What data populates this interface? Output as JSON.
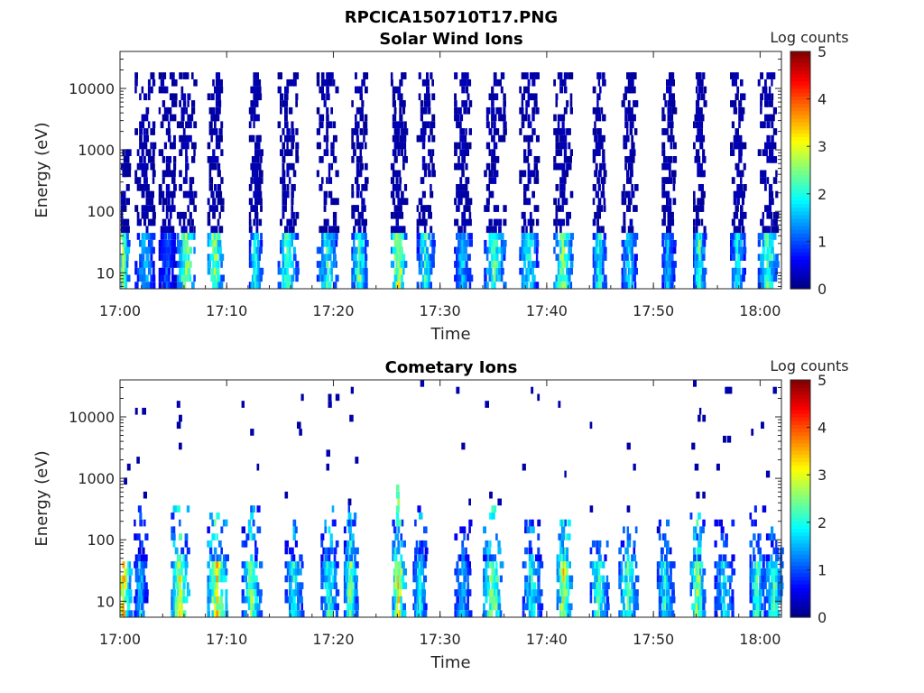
{
  "figure": {
    "title": "RPCICA150710T17.PNG"
  },
  "colormap": "jet",
  "chart_data": [
    {
      "type": "heatmap",
      "title": "Solar Wind Ions",
      "xlabel": "Time",
      "ylabel": "Energy (eV)",
      "x_range": [
        "17:00",
        "18:02"
      ],
      "x_ticks": [
        "17:00",
        "17:10",
        "17:20",
        "17:30",
        "17:40",
        "17:50",
        "18:00"
      ],
      "y_scale": "log",
      "y_range": [
        5.5,
        40000
      ],
      "y_ticks": [
        10,
        100,
        1000,
        10000
      ],
      "y_tick_labels": [
        "10",
        "100",
        "1000",
        "10000"
      ],
      "colorbar": {
        "label": "Log counts",
        "range": [
          0,
          5
        ],
        "ticks": [
          "0",
          "1",
          "2",
          "3",
          "4",
          "5"
        ]
      },
      "bursts": [
        {
          "t": 0.2,
          "peak": 2.9,
          "top_e": 1000
        },
        {
          "t": 2.2,
          "peak": 1.7,
          "top_e": 20000
        },
        {
          "t": 4.3,
          "peak": 1.2,
          "top_e": 20000
        },
        {
          "t": 6.1,
          "peak": 3.0,
          "top_e": 20000
        },
        {
          "t": 8.8,
          "peak": 3.0,
          "top_e": 20000
        },
        {
          "t": 12.6,
          "peak": 2.2,
          "top_e": 20000
        },
        {
          "t": 15.6,
          "peak": 2.4,
          "top_e": 20000
        },
        {
          "t": 19.3,
          "peak": 2.2,
          "top_e": 20000
        },
        {
          "t": 22.3,
          "peak": 2.5,
          "top_e": 20000
        },
        {
          "t": 26.0,
          "peak": 3.3,
          "top_e": 20000
        },
        {
          "t": 28.5,
          "peak": 2.2,
          "top_e": 20000
        },
        {
          "t": 32.0,
          "peak": 1.8,
          "top_e": 20000
        },
        {
          "t": 35.0,
          "peak": 2.5,
          "top_e": 20000
        },
        {
          "t": 38.2,
          "peak": 2.2,
          "top_e": 20000
        },
        {
          "t": 41.4,
          "peak": 2.8,
          "top_e": 20000
        },
        {
          "t": 44.8,
          "peak": 2.3,
          "top_e": 20000
        },
        {
          "t": 47.6,
          "peak": 2.0,
          "top_e": 20000
        },
        {
          "t": 51.3,
          "peak": 1.8,
          "top_e": 20000
        },
        {
          "t": 54.2,
          "peak": 2.5,
          "top_e": 20000
        },
        {
          "t": 57.8,
          "peak": 2.0,
          "top_e": 20000
        },
        {
          "t": 60.6,
          "peak": 2.5,
          "top_e": 20000
        }
      ]
    },
    {
      "type": "heatmap",
      "title": "Cometary Ions",
      "xlabel": "Time",
      "ylabel": "Energy (eV)",
      "x_range": [
        "17:00",
        "18:02"
      ],
      "x_ticks": [
        "17:00",
        "17:10",
        "17:20",
        "17:30",
        "17:40",
        "17:50",
        "18:00"
      ],
      "y_scale": "log",
      "y_range": [
        5.5,
        40000
      ],
      "y_ticks": [
        10,
        100,
        1000,
        10000
      ],
      "y_tick_labels": [
        "10",
        "100",
        "1000",
        "10000"
      ],
      "colorbar": {
        "label": "Log counts",
        "range": [
          0,
          5
        ],
        "ticks": [
          "0",
          "1",
          "2",
          "3",
          "4",
          "5"
        ]
      },
      "bursts": [
        {
          "t": 0.2,
          "peak": 3.5,
          "top_e": 40
        },
        {
          "t": 1.8,
          "peak": 1.8,
          "top_e": 400
        },
        {
          "t": 5.5,
          "peak": 3.3,
          "top_e": 400
        },
        {
          "t": 9.0,
          "peak": 3.4,
          "top_e": 400
        },
        {
          "t": 12.2,
          "peak": 2.6,
          "top_e": 400
        },
        {
          "t": 16.2,
          "peak": 2.2,
          "top_e": 300
        },
        {
          "t": 19.5,
          "peak": 2.4,
          "top_e": 400
        },
        {
          "t": 21.5,
          "peak": 2.8,
          "top_e": 400
        },
        {
          "t": 26.0,
          "peak": 3.6,
          "top_e": 800
        },
        {
          "t": 28.0,
          "peak": 2.2,
          "top_e": 400
        },
        {
          "t": 32.0,
          "peak": 1.8,
          "top_e": 200
        },
        {
          "t": 34.8,
          "peak": 3.0,
          "top_e": 400
        },
        {
          "t": 38.5,
          "peak": 2.2,
          "top_e": 200
        },
        {
          "t": 41.5,
          "peak": 3.4,
          "top_e": 200
        },
        {
          "t": 44.8,
          "peak": 2.5,
          "top_e": 100
        },
        {
          "t": 47.5,
          "peak": 2.6,
          "top_e": 200
        },
        {
          "t": 51.0,
          "peak": 2.2,
          "top_e": 200
        },
        {
          "t": 54.0,
          "peak": 3.0,
          "top_e": 300
        },
        {
          "t": 56.5,
          "peak": 2.0,
          "top_e": 200
        },
        {
          "t": 59.6,
          "peak": 2.6,
          "top_e": 400
        },
        {
          "t": 61.2,
          "peak": 2.3,
          "top_e": 200
        }
      ]
    }
  ]
}
